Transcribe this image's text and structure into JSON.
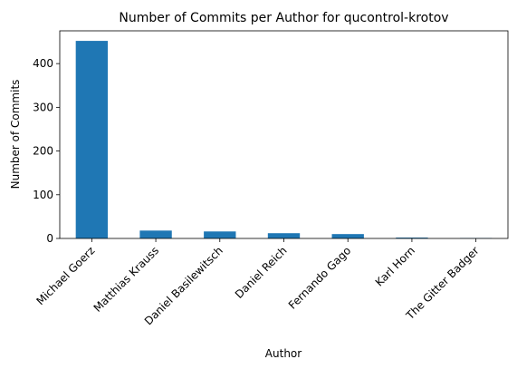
{
  "chart_data": {
    "type": "bar",
    "title": "Number of Commits per Author for qucontrol-krotov",
    "xlabel": "Author",
    "ylabel": "Number of Commits",
    "categories": [
      "Michael Goerz",
      "Matthias Krauss",
      "Daniel Basilewitsch",
      "Daniel Reich",
      "Fernando Gago",
      "Karl Horn",
      "The Gitter Badger"
    ],
    "values": [
      452,
      18,
      16,
      12,
      10,
      2,
      1
    ],
    "ylim": [
      0,
      475
    ],
    "yticks": [
      "0",
      "100",
      "200",
      "300",
      "400"
    ],
    "bar_color": "#1f77b4",
    "grid": false,
    "legend": "none"
  }
}
